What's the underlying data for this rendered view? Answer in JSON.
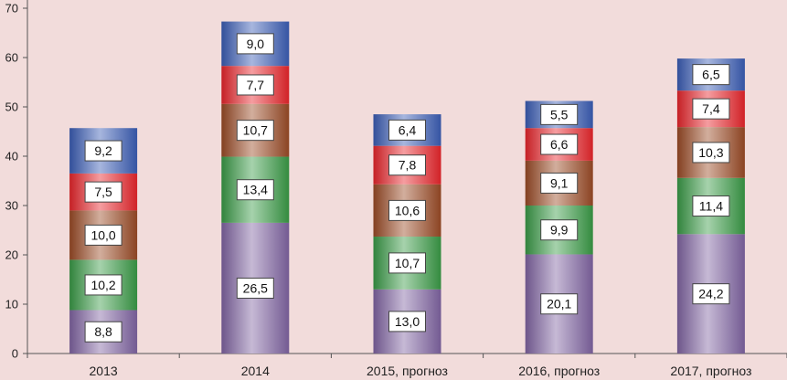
{
  "chart_data": {
    "type": "bar",
    "stacked": true,
    "categories": [
      "2013",
      "2014",
      "2015, прогноз",
      "2016, прогноз",
      "2017, прогноз"
    ],
    "series": [
      {
        "color": "#8064a2",
        "values": [
          8.8,
          26.5,
          13.0,
          20.1,
          24.2
        ],
        "labels": [
          "8,8",
          "26,5",
          "13,0",
          "20,1",
          "24,2"
        ]
      },
      {
        "color": "#3a9a46",
        "values": [
          10.2,
          13.4,
          10.7,
          9.9,
          11.4
        ],
        "labels": [
          "10,2",
          "13,4",
          "10,7",
          "9,9",
          "11,4"
        ]
      },
      {
        "color": "#9a4a26",
        "values": [
          10.0,
          10.7,
          10.6,
          9.1,
          10.3
        ],
        "labels": [
          "10,0",
          "10,7",
          "10,6",
          "9,1",
          "10,3"
        ]
      },
      {
        "color": "#e8262b",
        "values": [
          7.5,
          7.7,
          7.8,
          6.6,
          7.4
        ],
        "labels": [
          "7,5",
          "7,7",
          "7,8",
          "6,6",
          "7,4"
        ]
      },
      {
        "color": "#3b5db5",
        "values": [
          9.2,
          9.0,
          6.4,
          5.5,
          6.5
        ],
        "labels": [
          "9,2",
          "9,0",
          "6,4",
          "5,5",
          "6,5"
        ]
      }
    ],
    "yticks": [
      "0",
      "10",
      "20",
      "30",
      "40",
      "50",
      "60",
      "70"
    ],
    "ylim": [
      0,
      70
    ],
    "grid": false,
    "legend": "none"
  }
}
